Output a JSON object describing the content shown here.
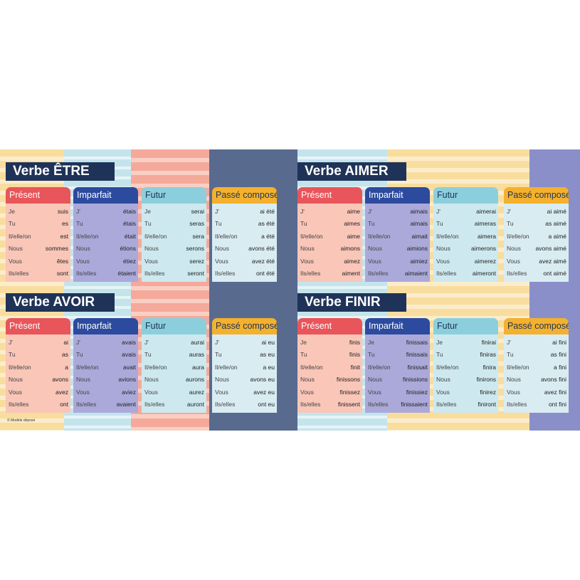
{
  "footer": "© Modèle déposé",
  "colors": {
    "title_bg": "#1f3358",
    "present": "#e8555a",
    "imparfait": "#2c4a9e",
    "futur": "#8ccfdc",
    "passe_compose": "#f4b12d"
  },
  "panels": [
    {
      "title": "Verbe ÊTRE",
      "tenses": [
        {
          "name": "Présent",
          "rows": [
            {
              "pronoun": "Je",
              "form": "suis"
            },
            {
              "pronoun": "Tu",
              "form": "es"
            },
            {
              "pronoun": "Il/elle/on",
              "form": "est"
            },
            {
              "pronoun": "Nous",
              "form": "sommes"
            },
            {
              "pronoun": "Vous",
              "form": "êtes"
            },
            {
              "pronoun": "Ils/elles",
              "form": "sont"
            }
          ]
        },
        {
          "name": "Imparfait",
          "rows": [
            {
              "pronoun": "J'",
              "form": "étais"
            },
            {
              "pronoun": "Tu",
              "form": "étais"
            },
            {
              "pronoun": "Il/elle/on",
              "form": "était"
            },
            {
              "pronoun": "Nous",
              "form": "étions"
            },
            {
              "pronoun": "Vous",
              "form": "étiez"
            },
            {
              "pronoun": "Ils/elles",
              "form": "étaient"
            }
          ]
        },
        {
          "name": "Futur",
          "rows": [
            {
              "pronoun": "Je",
              "form": "serai"
            },
            {
              "pronoun": "Tu",
              "form": "seras"
            },
            {
              "pronoun": "Il/elle/on",
              "form": "sera"
            },
            {
              "pronoun": "Nous",
              "form": "serons"
            },
            {
              "pronoun": "Vous",
              "form": "serez"
            },
            {
              "pronoun": "Ils/elles",
              "form": "seront"
            }
          ]
        },
        {
          "name": "Passé composé",
          "rows": [
            {
              "pronoun": "J'",
              "form": "ai été"
            },
            {
              "pronoun": "Tu",
              "form": "as été"
            },
            {
              "pronoun": "Il/elle/on",
              "form": "a été"
            },
            {
              "pronoun": "Nous",
              "form": "avons été"
            },
            {
              "pronoun": "Vous",
              "form": "avez été"
            },
            {
              "pronoun": "Ils/elles",
              "form": "ont été"
            }
          ]
        }
      ]
    },
    {
      "title": "Verbe AIMER",
      "tenses": [
        {
          "name": "Présent",
          "rows": [
            {
              "pronoun": "J'",
              "form": "aime"
            },
            {
              "pronoun": "Tu",
              "form": "aimes"
            },
            {
              "pronoun": "Il/elle/on",
              "form": "aime"
            },
            {
              "pronoun": "Nous",
              "form": "aimons"
            },
            {
              "pronoun": "Vous",
              "form": "aimez"
            },
            {
              "pronoun": "Ils/elles",
              "form": "aiment"
            }
          ]
        },
        {
          "name": "Imparfait",
          "rows": [
            {
              "pronoun": "J'",
              "form": "aimais"
            },
            {
              "pronoun": "Tu",
              "form": "aimais"
            },
            {
              "pronoun": "Il/elle/on",
              "form": "aimait"
            },
            {
              "pronoun": "Nous",
              "form": "aimions"
            },
            {
              "pronoun": "Vous",
              "form": "aimiez"
            },
            {
              "pronoun": "Ils/elles",
              "form": "aimaient"
            }
          ]
        },
        {
          "name": "Futur",
          "rows": [
            {
              "pronoun": "J'",
              "form": "aimerai"
            },
            {
              "pronoun": "Tu",
              "form": "aimeras"
            },
            {
              "pronoun": "Il/elle/on",
              "form": "aimera"
            },
            {
              "pronoun": "Nous",
              "form": "aimerons"
            },
            {
              "pronoun": "Vous",
              "form": "aimerez"
            },
            {
              "pronoun": "Ils/elles",
              "form": "aimeront"
            }
          ]
        },
        {
          "name": "Passé composé",
          "rows": [
            {
              "pronoun": "J'",
              "form": "ai aimé"
            },
            {
              "pronoun": "Tu",
              "form": "as aimé"
            },
            {
              "pronoun": "Il/elle/on",
              "form": "a aimé"
            },
            {
              "pronoun": "Nous",
              "form": "avons aimé"
            },
            {
              "pronoun": "Vous",
              "form": "avez aimé"
            },
            {
              "pronoun": "Ils/elles",
              "form": "ont aimé"
            }
          ]
        }
      ]
    },
    {
      "title": "Verbe AVOIR",
      "tenses": [
        {
          "name": "Présent",
          "rows": [
            {
              "pronoun": "J'",
              "form": "ai"
            },
            {
              "pronoun": "Tu",
              "form": "as"
            },
            {
              "pronoun": "Il/elle/on",
              "form": "a"
            },
            {
              "pronoun": "Nous",
              "form": "avons"
            },
            {
              "pronoun": "Vous",
              "form": "avez"
            },
            {
              "pronoun": "Ils/elles",
              "form": "ont"
            }
          ]
        },
        {
          "name": "Imparfait",
          "rows": [
            {
              "pronoun": "J'",
              "form": "avais"
            },
            {
              "pronoun": "Tu",
              "form": "avais"
            },
            {
              "pronoun": "Il/elle/on",
              "form": "avait"
            },
            {
              "pronoun": "Nous",
              "form": "avions"
            },
            {
              "pronoun": "Vous",
              "form": "aviez"
            },
            {
              "pronoun": "Ils/elles",
              "form": "avaient"
            }
          ]
        },
        {
          "name": "Futur",
          "rows": [
            {
              "pronoun": "J'",
              "form": "aurai"
            },
            {
              "pronoun": "Tu",
              "form": "auras"
            },
            {
              "pronoun": "Il/elle/on",
              "form": "aura"
            },
            {
              "pronoun": "Nous",
              "form": "aurons"
            },
            {
              "pronoun": "Vous",
              "form": "aurez"
            },
            {
              "pronoun": "Ils/elles",
              "form": "auront"
            }
          ]
        },
        {
          "name": "Passé composé",
          "rows": [
            {
              "pronoun": "J'",
              "form": "ai eu"
            },
            {
              "pronoun": "Tu",
              "form": "as eu"
            },
            {
              "pronoun": "Il/elle/on",
              "form": "a eu"
            },
            {
              "pronoun": "Nous",
              "form": "avons eu"
            },
            {
              "pronoun": "Vous",
              "form": "avez eu"
            },
            {
              "pronoun": "Ils/elles",
              "form": "ont eu"
            }
          ]
        }
      ]
    },
    {
      "title": "Verbe FINIR",
      "tenses": [
        {
          "name": "Présent",
          "rows": [
            {
              "pronoun": "Je",
              "form": "finis"
            },
            {
              "pronoun": "Tu",
              "form": "finis"
            },
            {
              "pronoun": "Il/elle/on",
              "form": "finit"
            },
            {
              "pronoun": "Nous",
              "form": "finissons"
            },
            {
              "pronoun": "Vous",
              "form": "finissez"
            },
            {
              "pronoun": "Ils/elles",
              "form": "finissent"
            }
          ]
        },
        {
          "name": "Imparfait",
          "rows": [
            {
              "pronoun": "Je",
              "form": "finissais"
            },
            {
              "pronoun": "Tu",
              "form": "finissais"
            },
            {
              "pronoun": "Il/elle/on",
              "form": "finissait"
            },
            {
              "pronoun": "Nous",
              "form": "finissions"
            },
            {
              "pronoun": "Vous",
              "form": "finissiez"
            },
            {
              "pronoun": "Ils/elles",
              "form": "finissaient"
            }
          ]
        },
        {
          "name": "Futur",
          "rows": [
            {
              "pronoun": "Je",
              "form": "finirai"
            },
            {
              "pronoun": "Tu",
              "form": "finiras"
            },
            {
              "pronoun": "Il/elle/on",
              "form": "finira"
            },
            {
              "pronoun": "Nous",
              "form": "finirons"
            },
            {
              "pronoun": "Vous",
              "form": "finirez"
            },
            {
              "pronoun": "Ils/elles",
              "form": "finiront"
            }
          ]
        },
        {
          "name": "Passé composé",
          "rows": [
            {
              "pronoun": "J'",
              "form": "ai fini"
            },
            {
              "pronoun": "Tu",
              "form": "as fini"
            },
            {
              "pronoun": "Il/elle/on",
              "form": "a fini"
            },
            {
              "pronoun": "Nous",
              "form": "avons fini"
            },
            {
              "pronoun": "Vous",
              "form": "avez fini"
            },
            {
              "pronoun": "Ils/elles",
              "form": "ont fini"
            }
          ]
        }
      ]
    }
  ]
}
